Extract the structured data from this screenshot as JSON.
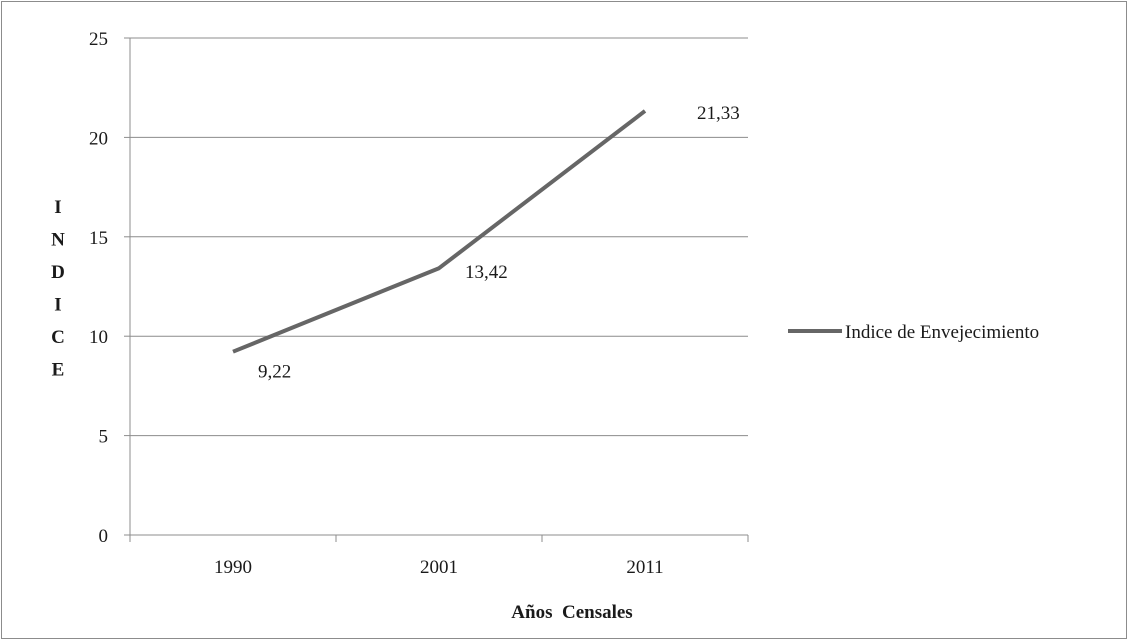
{
  "chart_data": {
    "type": "line",
    "categories": [
      "1990",
      "2001",
      "2011"
    ],
    "series": [
      {
        "name": "Indice de Envejecimiento",
        "values": [
          9.22,
          13.42,
          21.33
        ],
        "color": "#666666"
      }
    ],
    "data_labels": [
      "9,22",
      "13,42",
      "21,33"
    ],
    "xlabel": "Años  Censales",
    "ylabel": "INDICE",
    "ylim": [
      0,
      25
    ],
    "yticks": [
      "0",
      "5",
      "10",
      "15",
      "20",
      "25"
    ],
    "grid": true,
    "legend_position": "right"
  }
}
